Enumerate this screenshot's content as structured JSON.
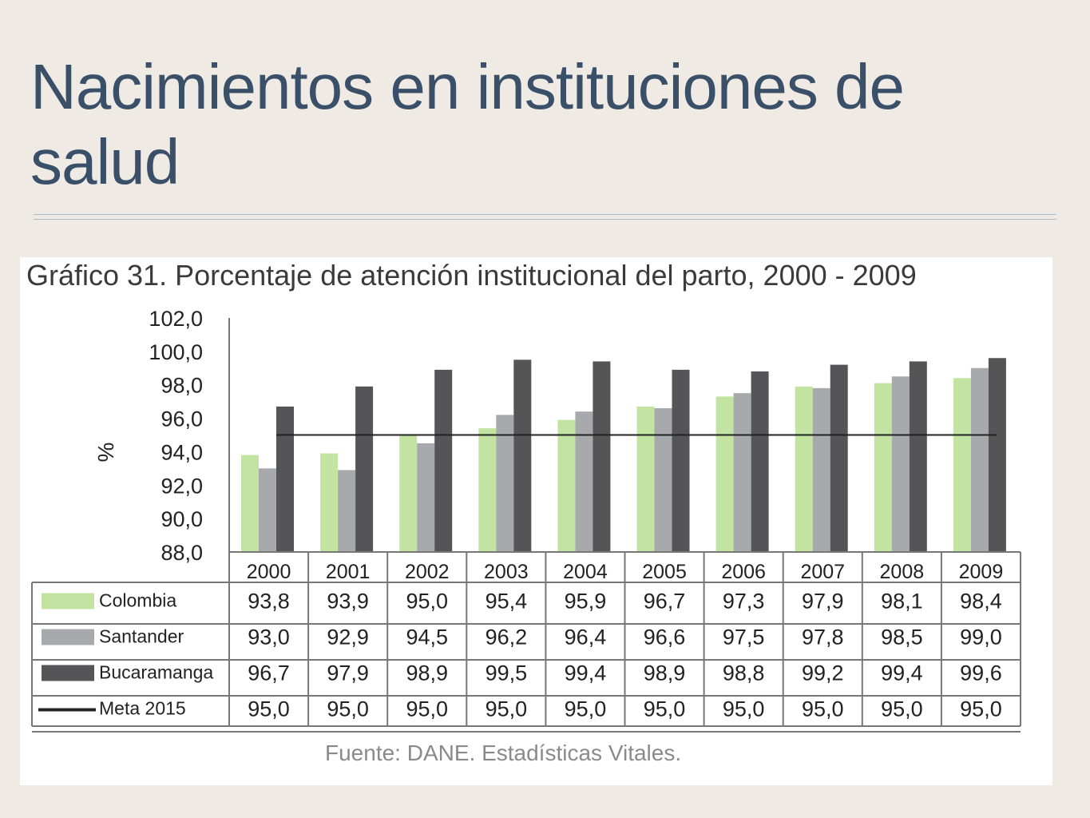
{
  "slide": {
    "title": "Nacimientos en instituciones de salud"
  },
  "chart_data": {
    "type": "bar",
    "title": "Gráfico 31.  Porcentaje de atención institucional del parto, 2000 - 2009",
    "ylabel": "%",
    "xlabel": "",
    "ylim": [
      88,
      102
    ],
    "yticks": [
      "102,0",
      "100,0",
      "98,0",
      "96,0",
      "94,0",
      "92,0",
      "90,0",
      "88,0"
    ],
    "categories": [
      "2000",
      "2001",
      "2002",
      "2003",
      "2004",
      "2005",
      "2006",
      "2007",
      "2008",
      "2009"
    ],
    "series": [
      {
        "name": "Colombia",
        "kind": "bar",
        "color": "#c3e3a3",
        "values": [
          93.8,
          93.9,
          95.0,
          95.4,
          95.9,
          96.7,
          97.3,
          97.9,
          98.1,
          98.4
        ],
        "labels": [
          "93,8",
          "93,9",
          "95,0",
          "95,4",
          "95,9",
          "96,7",
          "97,3",
          "97,9",
          "98,1",
          "98,4"
        ]
      },
      {
        "name": "Santander",
        "kind": "bar",
        "color": "#a8a9ad",
        "values": [
          93.0,
          92.9,
          94.5,
          96.2,
          96.4,
          96.6,
          97.5,
          97.8,
          98.5,
          99.0
        ],
        "labels": [
          "93,0",
          "92,9",
          "94,5",
          "96,2",
          "96,4",
          "96,6",
          "97,5",
          "97,8",
          "98,5",
          "99,0"
        ]
      },
      {
        "name": "Bucaramanga",
        "kind": "bar",
        "color": "#555558",
        "values": [
          96.7,
          97.9,
          98.9,
          99.5,
          99.4,
          98.9,
          98.8,
          99.2,
          99.4,
          99.6
        ],
        "labels": [
          "96,7",
          "97,9",
          "98,9",
          "99,5",
          "99,4",
          "98,9",
          "98,8",
          "99,2",
          "99,4",
          "99,6"
        ]
      },
      {
        "name": "Meta 2015",
        "kind": "line",
        "color": "#222222",
        "values": [
          95.0,
          95.0,
          95.0,
          95.0,
          95.0,
          95.0,
          95.0,
          95.0,
          95.0,
          95.0
        ],
        "labels": [
          "95,0",
          "95,0",
          "95,0",
          "95,0",
          "95,0",
          "95,0",
          "95,0",
          "95,0",
          "95,0",
          "95,0"
        ]
      }
    ],
    "legend": "data-table",
    "grid": false,
    "source": "Fuente: DANE. Estadísticas Vitales."
  }
}
